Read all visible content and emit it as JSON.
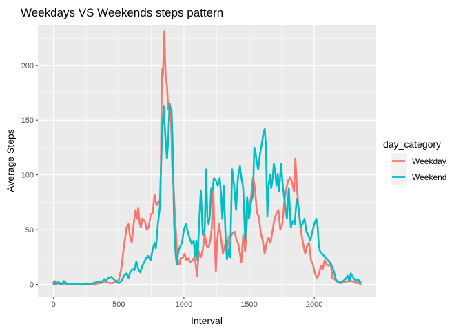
{
  "chart_data": {
    "type": "line",
    "title": "Weekdays VS Weekends steps pattern",
    "xlabel": "Interval",
    "ylabel": "Average Steps",
    "xlim": [
      -120,
      2475
    ],
    "ylim": [
      -11,
      237
    ],
    "x_ticks": [
      0,
      500,
      1000,
      1500,
      2000
    ],
    "y_ticks": [
      0,
      50,
      100,
      150,
      200
    ],
    "grid": true,
    "legend": {
      "title": "day_category",
      "position": "right"
    },
    "series": [
      {
        "name": "Weekday",
        "color": "#F8766D",
        "points": [
          [
            0,
            2
          ],
          [
            15,
            0
          ],
          [
            30,
            2
          ],
          [
            45,
            0
          ],
          [
            60,
            1
          ],
          [
            100,
            0
          ],
          [
            150,
            0
          ],
          [
            200,
            0
          ],
          [
            250,
            1
          ],
          [
            300,
            0
          ],
          [
            350,
            1
          ],
          [
            400,
            2
          ],
          [
            450,
            1
          ],
          [
            500,
            4
          ],
          [
            520,
            15
          ],
          [
            540,
            35
          ],
          [
            560,
            52
          ],
          [
            575,
            55
          ],
          [
            585,
            45
          ],
          [
            600,
            38
          ],
          [
            610,
            50
          ],
          [
            620,
            60
          ],
          [
            630,
            68
          ],
          [
            640,
            60
          ],
          [
            650,
            70
          ],
          [
            660,
            56
          ],
          [
            670,
            52
          ],
          [
            680,
            60
          ],
          [
            700,
            58
          ],
          [
            715,
            50
          ],
          [
            730,
            52
          ],
          [
            745,
            64
          ],
          [
            760,
            65
          ],
          [
            775,
            82
          ],
          [
            790,
            72
          ],
          [
            805,
            76
          ],
          [
            820,
            72
          ],
          [
            830,
            183
          ],
          [
            835,
            197
          ],
          [
            840,
            191
          ],
          [
            845,
            215
          ],
          [
            850,
            231
          ],
          [
            855,
            208
          ],
          [
            860,
            190
          ],
          [
            870,
            182
          ],
          [
            880,
            160
          ],
          [
            890,
            163
          ],
          [
            900,
            150
          ],
          [
            905,
            135
          ],
          [
            910,
            108
          ],
          [
            920,
            90
          ],
          [
            935,
            55
          ],
          [
            945,
            35
          ],
          [
            955,
            19
          ],
          [
            965,
            18
          ],
          [
            975,
            24
          ],
          [
            990,
            24
          ],
          [
            1005,
            28
          ],
          [
            1020,
            22
          ],
          [
            1035,
            24
          ],
          [
            1050,
            20
          ],
          [
            1065,
            22
          ],
          [
            1080,
            25
          ],
          [
            1090,
            19
          ],
          [
            1100,
            8
          ],
          [
            1115,
            30
          ],
          [
            1130,
            25
          ],
          [
            1145,
            32
          ],
          [
            1160,
            46
          ],
          [
            1175,
            35
          ],
          [
            1190,
            34
          ],
          [
            1205,
            42
          ],
          [
            1215,
            53
          ],
          [
            1225,
            90
          ],
          [
            1235,
            40
          ],
          [
            1245,
            12
          ],
          [
            1255,
            40
          ],
          [
            1270,
            55
          ],
          [
            1285,
            42
          ],
          [
            1300,
            28
          ],
          [
            1315,
            36
          ],
          [
            1330,
            30
          ],
          [
            1345,
            44
          ],
          [
            1360,
            44
          ],
          [
            1375,
            47
          ],
          [
            1390,
            48
          ],
          [
            1405,
            40
          ],
          [
            1415,
            38
          ],
          [
            1430,
            28
          ],
          [
            1440,
            20
          ],
          [
            1455,
            45
          ],
          [
            1470,
            30
          ],
          [
            1485,
            60
          ],
          [
            1500,
            70
          ],
          [
            1515,
            80
          ],
          [
            1530,
            98
          ],
          [
            1545,
            88
          ],
          [
            1560,
            65
          ],
          [
            1575,
            62
          ],
          [
            1590,
            47
          ],
          [
            1605,
            40
          ],
          [
            1620,
            28
          ],
          [
            1635,
            38
          ],
          [
            1650,
            43
          ],
          [
            1665,
            38
          ],
          [
            1680,
            49
          ],
          [
            1695,
            60
          ],
          [
            1710,
            65
          ],
          [
            1725,
            68
          ],
          [
            1740,
            50
          ],
          [
            1755,
            55
          ],
          [
            1770,
            75
          ],
          [
            1785,
            87
          ],
          [
            1800,
            95
          ],
          [
            1815,
            98
          ],
          [
            1830,
            93
          ],
          [
            1845,
            85
          ],
          [
            1855,
            115
          ],
          [
            1870,
            84
          ],
          [
            1885,
            62
          ],
          [
            1900,
            47
          ],
          [
            1915,
            37
          ],
          [
            1930,
            28
          ],
          [
            1945,
            35
          ],
          [
            1960,
            38
          ],
          [
            1975,
            22
          ],
          [
            1990,
            18
          ],
          [
            2005,
            10
          ],
          [
            2020,
            6
          ],
          [
            2035,
            9
          ],
          [
            2050,
            17
          ],
          [
            2065,
            14
          ],
          [
            2080,
            22
          ],
          [
            2095,
            18
          ],
          [
            2110,
            17
          ],
          [
            2125,
            20
          ],
          [
            2140,
            6
          ],
          [
            2155,
            5
          ],
          [
            2170,
            3
          ],
          [
            2200,
            1
          ],
          [
            2230,
            2
          ],
          [
            2260,
            3
          ],
          [
            2290,
            3
          ],
          [
            2320,
            1
          ],
          [
            2335,
            2
          ],
          [
            2355,
            0
          ]
        ]
      },
      {
        "name": "Weekend",
        "color": "#00BFC4",
        "points": [
          [
            0,
            0
          ],
          [
            10,
            3
          ],
          [
            20,
            0
          ],
          [
            40,
            2
          ],
          [
            60,
            0
          ],
          [
            80,
            3
          ],
          [
            100,
            1
          ],
          [
            130,
            0
          ],
          [
            160,
            1
          ],
          [
            200,
            0
          ],
          [
            250,
            0
          ],
          [
            300,
            1
          ],
          [
            330,
            2
          ],
          [
            350,
            3
          ],
          [
            370,
            2
          ],
          [
            390,
            5
          ],
          [
            400,
            3
          ],
          [
            420,
            6
          ],
          [
            440,
            7
          ],
          [
            460,
            5
          ],
          [
            480,
            3
          ],
          [
            500,
            1
          ],
          [
            520,
            3
          ],
          [
            540,
            8
          ],
          [
            560,
            10
          ],
          [
            575,
            6
          ],
          [
            590,
            12
          ],
          [
            605,
            14
          ],
          [
            620,
            13
          ],
          [
            635,
            21
          ],
          [
            650,
            14
          ],
          [
            665,
            11
          ],
          [
            680,
            17
          ],
          [
            695,
            20
          ],
          [
            710,
            24
          ],
          [
            725,
            26
          ],
          [
            745,
            22
          ],
          [
            760,
            32
          ],
          [
            775,
            38
          ],
          [
            785,
            33
          ],
          [
            800,
            55
          ],
          [
            815,
            70
          ],
          [
            825,
            110
          ],
          [
            835,
            145
          ],
          [
            840,
            150
          ],
          [
            845,
            163
          ],
          [
            850,
            150
          ],
          [
            860,
            131
          ],
          [
            870,
            115
          ],
          [
            880,
            132
          ],
          [
            890,
            165
          ],
          [
            900,
            160
          ],
          [
            905,
            160
          ],
          [
            915,
            124
          ],
          [
            925,
            55
          ],
          [
            935,
            30
          ],
          [
            945,
            18
          ],
          [
            955,
            28
          ],
          [
            965,
            33
          ],
          [
            985,
            38
          ],
          [
            1000,
            50
          ],
          [
            1015,
            55
          ],
          [
            1030,
            48
          ],
          [
            1045,
            42
          ],
          [
            1060,
            37
          ],
          [
            1075,
            40
          ],
          [
            1085,
            26
          ],
          [
            1095,
            40
          ],
          [
            1105,
            22
          ],
          [
            1115,
            52
          ],
          [
            1130,
            86
          ],
          [
            1145,
            45
          ],
          [
            1160,
            51
          ],
          [
            1170,
            105
          ],
          [
            1180,
            62
          ],
          [
            1190,
            55
          ],
          [
            1200,
            64
          ],
          [
            1210,
            88
          ],
          [
            1220,
            86
          ],
          [
            1230,
            97
          ],
          [
            1245,
            95
          ],
          [
            1260,
            90
          ],
          [
            1275,
            97
          ],
          [
            1285,
            83
          ],
          [
            1295,
            60
          ],
          [
            1305,
            90
          ],
          [
            1320,
            42
          ],
          [
            1330,
            23
          ],
          [
            1345,
            32
          ],
          [
            1355,
            25
          ],
          [
            1370,
            105
          ],
          [
            1385,
            90
          ],
          [
            1400,
            68
          ],
          [
            1415,
            98
          ],
          [
            1430,
            108
          ],
          [
            1440,
            98
          ],
          [
            1455,
            88
          ],
          [
            1470,
            40
          ],
          [
            1485,
            80
          ],
          [
            1500,
            60
          ],
          [
            1515,
            75
          ],
          [
            1530,
            82
          ],
          [
            1540,
            125
          ],
          [
            1550,
            120
          ],
          [
            1560,
            110
          ],
          [
            1570,
            105
          ],
          [
            1585,
            120
          ],
          [
            1600,
            130
          ],
          [
            1610,
            138
          ],
          [
            1620,
            142
          ],
          [
            1630,
            125
          ],
          [
            1640,
            62
          ],
          [
            1650,
            90
          ],
          [
            1660,
            100
          ],
          [
            1670,
            88
          ],
          [
            1680,
            96
          ],
          [
            1690,
            110
          ],
          [
            1700,
            103
          ],
          [
            1710,
            90
          ],
          [
            1720,
            101
          ],
          [
            1730,
            85
          ],
          [
            1745,
            110
          ],
          [
            1760,
            88
          ],
          [
            1775,
            74
          ],
          [
            1790,
            60
          ],
          [
            1805,
            88
          ],
          [
            1820,
            52
          ],
          [
            1835,
            58
          ],
          [
            1850,
            55
          ],
          [
            1865,
            78
          ],
          [
            1880,
            70
          ],
          [
            1895,
            52
          ],
          [
            1910,
            55
          ],
          [
            1925,
            60
          ],
          [
            1940,
            48
          ],
          [
            1955,
            45
          ],
          [
            1970,
            40
          ],
          [
            1985,
            48
          ],
          [
            2000,
            55
          ],
          [
            2015,
            60
          ],
          [
            2025,
            54
          ],
          [
            2035,
            36
          ],
          [
            2045,
            30
          ],
          [
            2060,
            28
          ],
          [
            2075,
            26
          ],
          [
            2090,
            24
          ],
          [
            2105,
            22
          ],
          [
            2120,
            20
          ],
          [
            2135,
            17
          ],
          [
            2150,
            12
          ],
          [
            2165,
            5
          ],
          [
            2180,
            2
          ],
          [
            2200,
            2
          ],
          [
            2220,
            3
          ],
          [
            2240,
            5
          ],
          [
            2255,
            8
          ],
          [
            2270,
            3
          ],
          [
            2280,
            10
          ],
          [
            2300,
            6
          ],
          [
            2320,
            3
          ],
          [
            2335,
            5
          ],
          [
            2350,
            2
          ],
          [
            2355,
            2
          ]
        ]
      }
    ]
  }
}
